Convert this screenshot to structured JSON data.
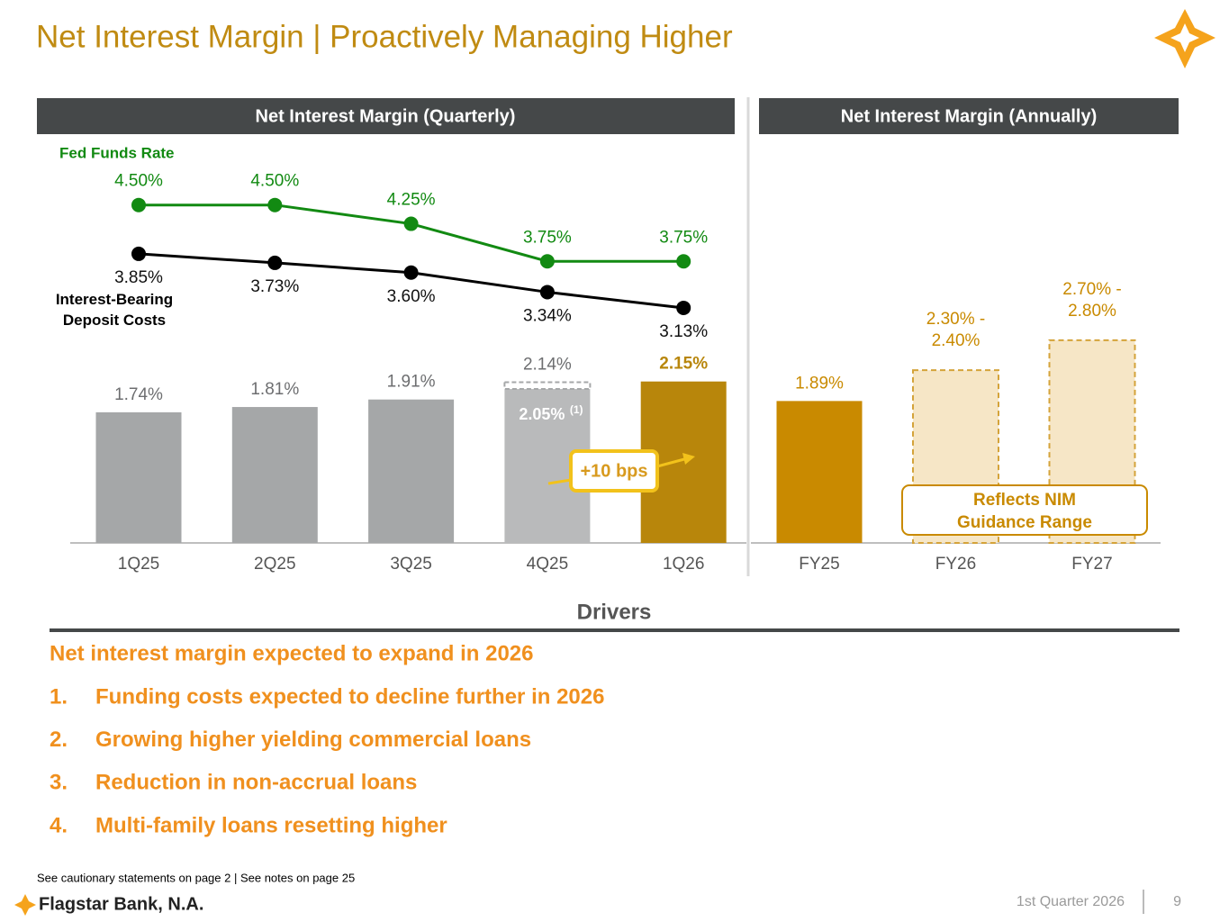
{
  "title": "Net Interest Margin | Proactively Managing Higher",
  "chart_data": [
    {
      "type": "bar",
      "title": "Net Interest Margin (Quarterly)",
      "categories": [
        "1Q25",
        "2Q25",
        "3Q25",
        "4Q25",
        "1Q26"
      ],
      "values": [
        1.74,
        1.81,
        1.91,
        2.14,
        2.15
      ],
      "value_labels": [
        "1.74%",
        "1.81%",
        "1.91%",
        "2.14%",
        "2.15%"
      ],
      "colors": [
        "#a5a7a8",
        "#a5a7a8",
        "#a5a7a8",
        "#b9babb",
        "#b8860b"
      ],
      "adjusted_values": [
        null,
        null,
        null,
        2.05,
        null
      ],
      "adjusted_labels": [
        null,
        null,
        null,
        "2.05%",
        null
      ],
      "adjusted_note": "(1)",
      "ylim": [
        0,
        5
      ],
      "lines": [
        {
          "name": "Fed Funds Rate",
          "color": "#128a12",
          "values": [
            4.5,
            4.5,
            4.25,
            3.75,
            3.75
          ],
          "value_labels": [
            "4.50%",
            "4.50%",
            "4.25%",
            "3.75%",
            "3.75%"
          ]
        },
        {
          "name": "Interest-Bearing Deposit Costs",
          "color": "#000000",
          "values": [
            3.85,
            3.73,
            3.6,
            3.34,
            3.13
          ],
          "value_labels": [
            "3.85%",
            "3.73%",
            "3.60%",
            "3.34%",
            "3.13%"
          ]
        }
      ],
      "annotation": "+10 bps"
    },
    {
      "type": "bar",
      "title": "Net Interest Margin (Annually)",
      "categories": [
        "FY25",
        "FY26",
        "FY27"
      ],
      "values": [
        1.89,
        2.3,
        2.7
      ],
      "highs": [
        null,
        2.4,
        2.8
      ],
      "value_labels": [
        "1.89%",
        "2.30% - 2.40%",
        "2.70% - 2.80%"
      ],
      "colors": [
        "#c98a00",
        "#f6e6c6",
        "#f6e6c6"
      ],
      "ylim": [
        0,
        5
      ],
      "annotation": "Reflects NIM Guidance Range"
    }
  ],
  "drivers": {
    "heading": "Drivers",
    "lead": "Net interest margin expected to expand in 2026",
    "items": [
      {
        "number": "1.",
        "text": "Funding costs expected to decline further in 2026"
      },
      {
        "number": "2.",
        "text": "Growing higher yielding commercial loans"
      },
      {
        "number": "3.",
        "text": "Reduction in non-accrual loans"
      },
      {
        "number": "4.",
        "text": "Multi-family loans resetting higher"
      }
    ]
  },
  "footer": {
    "note": "See cautionary statements on page 2  | See notes on page 25",
    "company": "Flagstar Bank, N.A.",
    "period": "1st Quarter 2026",
    "page": "9"
  }
}
